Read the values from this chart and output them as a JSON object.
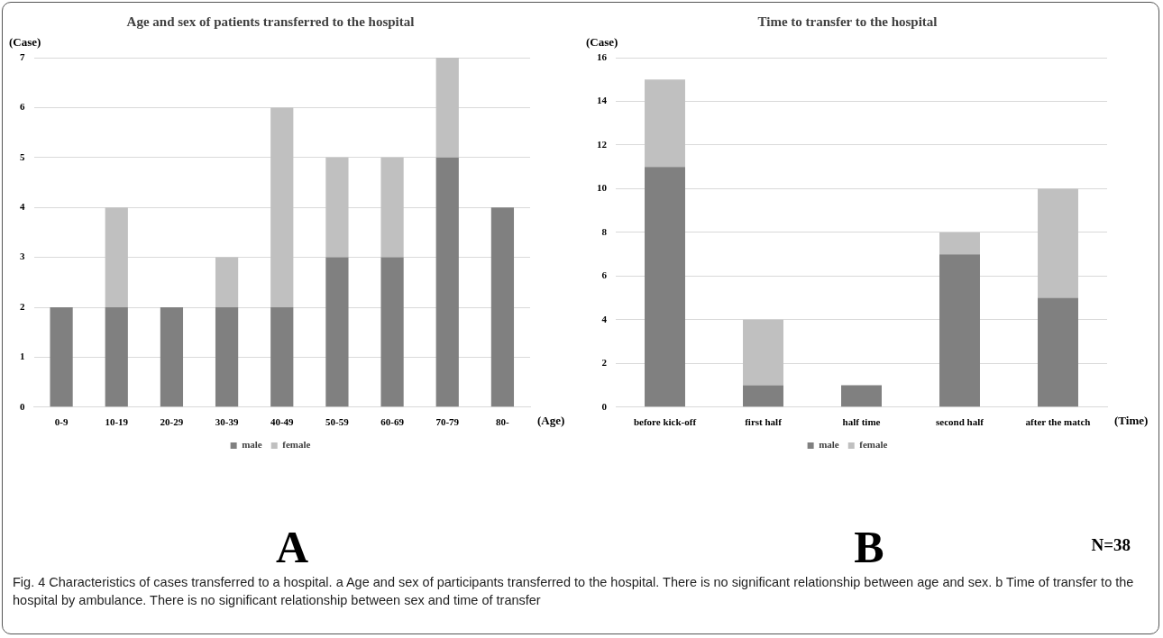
{
  "chart_data": [
    {
      "type": "bar",
      "title": "Age and sex of patients transferred to the hospital",
      "ylabel": "(Case)",
      "xlabel": "(Age)",
      "categories": [
        "0-9",
        "10-19",
        "20-29",
        "30-39",
        "40-49",
        "50-59",
        "60-69",
        "70-79",
        "80-"
      ],
      "stacked": true,
      "series": [
        {
          "name": "male",
          "color": "#808080",
          "values": [
            2,
            2,
            2,
            2,
            2,
            3,
            3,
            5,
            4
          ]
        },
        {
          "name": "female",
          "color": "#c0c0c0",
          "values": [
            0,
            2,
            0,
            1,
            4,
            2,
            2,
            2,
            0
          ]
        }
      ],
      "ylim": [
        0,
        7
      ],
      "yticks": [
        0,
        1,
        2,
        3,
        4,
        5,
        6,
        7
      ],
      "grid": "y",
      "legend": "bottom",
      "annotations": [
        "A",
        "Fig. 4 Characteristics of cases transferred to a hospital. a Age and sex of participants transferred to the hospital. There is no significant relationship between age and sex. b Time of transfer to the hospital by ambulance. There is no significant relationship between sex and time of transfer"
      ]
    },
    {
      "type": "bar",
      "title": "Time to transfer to the hospital",
      "ylabel": "(Case)",
      "xlabel": "(Time)",
      "categories": [
        "before kick-off",
        "first half",
        "half time",
        "second half",
        "after the match"
      ],
      "stacked": true,
      "series": [
        {
          "name": "male",
          "color": "#808080",
          "values": [
            11,
            1,
            1,
            7,
            5
          ]
        },
        {
          "name": "female",
          "color": "#c0c0c0",
          "values": [
            4,
            3,
            0,
            1,
            5
          ]
        }
      ],
      "ylim": [
        0,
        16
      ],
      "yticks": [
        0,
        2,
        4,
        6,
        8,
        10,
        12,
        14,
        16
      ],
      "grid": "y",
      "legend": "bottom",
      "annotations": [
        "B",
        "N=38"
      ]
    }
  ]
}
